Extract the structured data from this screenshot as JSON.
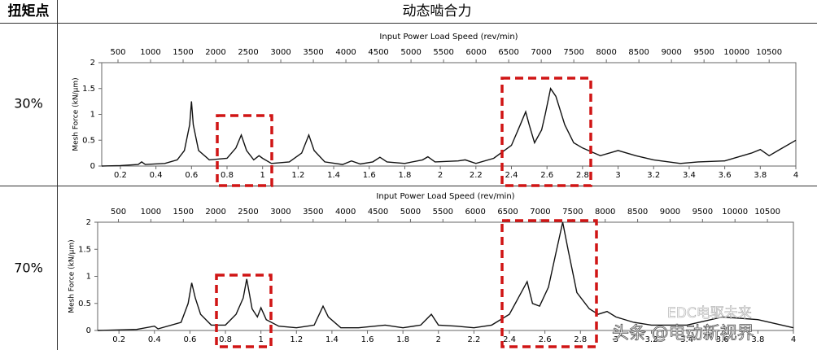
{
  "table": {
    "header": [
      "扭矩点",
      "动态啮合力"
    ],
    "rows": [
      "30%",
      "70%"
    ]
  },
  "watermark": [
    "EDC电驱未来",
    "头条 @电动新视界"
  ],
  "chart_data": [
    {
      "type": "line",
      "x2label": "Input Power Load Speed (rev/min)",
      "ylabel": "Mesh Force (kN/μm)",
      "xlim": [
        0.095,
        4
      ],
      "xticks": [
        0.2,
        0.4,
        0.6,
        0.8,
        1,
        1.2,
        1.4,
        1.6,
        1.8,
        2,
        2.2,
        2.4,
        2.6,
        2.8,
        3,
        3.2,
        3.4,
        3.6,
        3.8,
        4
      ],
      "x2lim": [
        250,
        10910
      ],
      "x2ticks": [
        500,
        1000,
        1500,
        2000,
        2500,
        3000,
        3500,
        4000,
        4500,
        5000,
        5500,
        6000,
        6500,
        7000,
        7500,
        8000,
        8500,
        9000,
        9500,
        10000,
        10500
      ],
      "ylim": [
        0,
        2
      ],
      "yticks": [
        0,
        0.5,
        1,
        1.5,
        2
      ],
      "x": [
        0.095,
        0.2,
        0.3,
        0.32,
        0.34,
        0.45,
        0.52,
        0.56,
        0.59,
        0.6,
        0.61,
        0.64,
        0.7,
        0.8,
        0.85,
        0.88,
        0.91,
        0.95,
        0.98,
        1.0,
        1.05,
        1.15,
        1.22,
        1.26,
        1.29,
        1.35,
        1.45,
        1.5,
        1.55,
        1.62,
        1.66,
        1.7,
        1.8,
        1.9,
        1.93,
        1.97,
        2.1,
        2.14,
        2.2,
        2.3,
        2.4,
        2.45,
        2.48,
        2.5,
        2.53,
        2.57,
        2.59,
        2.62,
        2.65,
        2.7,
        2.75,
        2.8,
        2.9,
        2.98,
        3.0,
        3.1,
        3.2,
        3.35,
        3.45,
        3.6,
        3.75,
        3.8,
        3.85,
        3.9,
        4.0
      ],
      "series": [
        {
          "color": "#111111",
          "values": [
            0,
            0.01,
            0.03,
            0.08,
            0.03,
            0.05,
            0.12,
            0.3,
            0.8,
            1.25,
            0.8,
            0.3,
            0.12,
            0.15,
            0.35,
            0.6,
            0.3,
            0.12,
            0.2,
            0.15,
            0.05,
            0.08,
            0.25,
            0.6,
            0.3,
            0.08,
            0.03,
            0.1,
            0.04,
            0.08,
            0.17,
            0.08,
            0.05,
            0.12,
            0.18,
            0.08,
            0.1,
            0.12,
            0.05,
            0.15,
            0.4,
            0.8,
            1.05,
            0.8,
            0.45,
            0.7,
            1.0,
            1.5,
            1.35,
            0.8,
            0.45,
            0.35,
            0.2,
            0.28,
            0.3,
            0.2,
            0.12,
            0.05,
            0.08,
            0.1,
            0.25,
            0.32,
            0.2,
            0.3,
            0.5
          ]
        }
      ]
    },
    {
      "type": "line",
      "x2label": "Input Power Load Speed (rev/min)",
      "ylabel": "Mesh Force (kN/μm)",
      "xlim": [
        0.08,
        4
      ],
      "xticks": [
        0.2,
        0.4,
        0.6,
        0.8,
        1,
        1.2,
        1.4,
        1.6,
        1.8,
        2,
        2.2,
        2.4,
        2.6,
        2.8,
        3,
        3.2,
        3.4,
        3.6,
        3.8,
        4
      ],
      "x2lim": [
        180,
        10900
      ],
      "x2ticks": [
        500,
        1000,
        1500,
        2000,
        2500,
        3000,
        3500,
        4000,
        4500,
        5000,
        5500,
        6000,
        6500,
        7000,
        7500,
        8000,
        8500,
        9000,
        9500,
        10000,
        10500
      ],
      "ylim": [
        0,
        2
      ],
      "yticks": [
        0,
        0.5,
        1,
        1.5,
        2
      ],
      "x": [
        0.08,
        0.3,
        0.4,
        0.42,
        0.55,
        0.59,
        0.61,
        0.63,
        0.66,
        0.72,
        0.8,
        0.86,
        0.9,
        0.92,
        0.95,
        0.98,
        1.0,
        1.03,
        1.1,
        1.2,
        1.3,
        1.35,
        1.38,
        1.45,
        1.55,
        1.7,
        1.8,
        1.9,
        1.96,
        2.0,
        2.1,
        2.2,
        2.3,
        2.4,
        2.45,
        2.5,
        2.53,
        2.57,
        2.62,
        2.66,
        2.7,
        2.73,
        2.78,
        2.85,
        2.9,
        2.95,
        3.0,
        3.1,
        3.2,
        3.4,
        3.6,
        3.8,
        4.0
      ],
      "series": [
        {
          "color": "#111111",
          "values": [
            0,
            0.02,
            0.08,
            0.03,
            0.15,
            0.5,
            0.88,
            0.6,
            0.3,
            0.1,
            0.1,
            0.3,
            0.6,
            0.95,
            0.4,
            0.25,
            0.42,
            0.2,
            0.08,
            0.05,
            0.1,
            0.45,
            0.25,
            0.05,
            0.05,
            0.1,
            0.05,
            0.1,
            0.3,
            0.1,
            0.08,
            0.05,
            0.1,
            0.3,
            0.6,
            0.9,
            0.5,
            0.45,
            0.8,
            1.4,
            2.0,
            1.5,
            0.7,
            0.4,
            0.3,
            0.35,
            0.25,
            0.15,
            0.1,
            0.1,
            0.25,
            0.2,
            0.05
          ]
        }
      ]
    }
  ]
}
